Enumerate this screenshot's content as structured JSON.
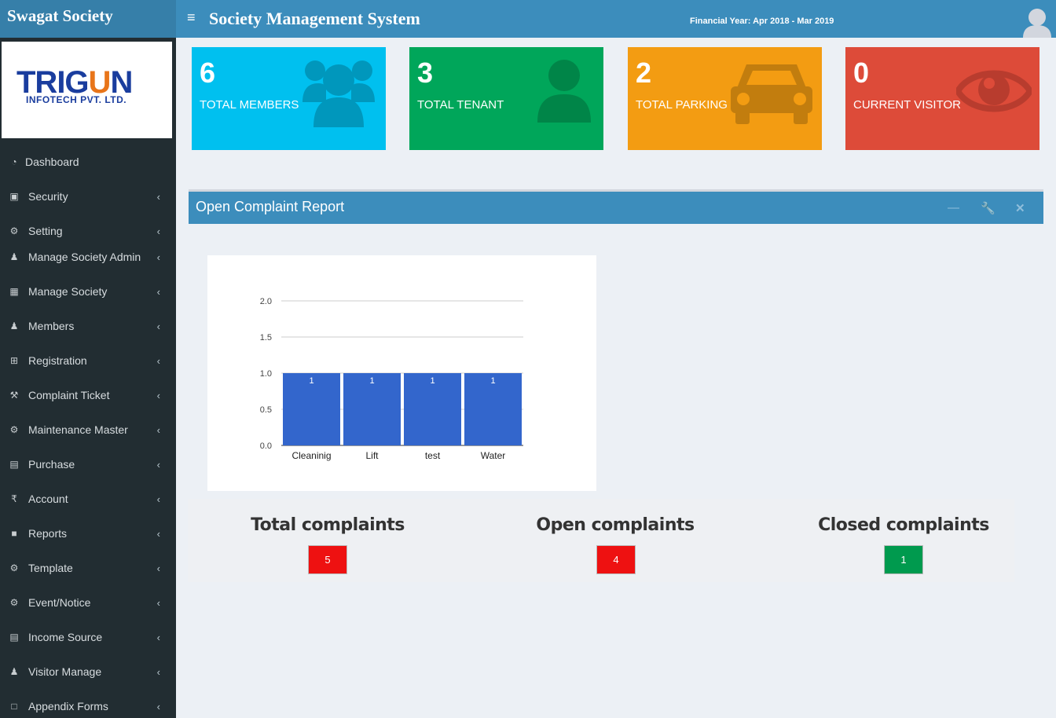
{
  "sidebar": {
    "brand": "Swagat Society",
    "logo": {
      "main": "TRIGUN",
      "sub": "INFOTECH PVT. LTD."
    },
    "items": [
      {
        "label": "Dashboard",
        "icon": "dashboard-icon",
        "has_chevron": false
      },
      {
        "label": "Security",
        "icon": "lock-icon",
        "has_chevron": true
      },
      {
        "label": "Setting",
        "icon": "gears-icon",
        "has_chevron": true
      },
      {
        "label": "Manage Society Admin",
        "icon": "users-icon",
        "has_chevron": true
      },
      {
        "label": "Manage Society",
        "icon": "building-icon",
        "has_chevron": true
      },
      {
        "label": "Members",
        "icon": "users-icon",
        "has_chevron": true
      },
      {
        "label": "Registration",
        "icon": "plus-square-icon",
        "has_chevron": true
      },
      {
        "label": "Complaint Ticket",
        "icon": "wrench-icon",
        "has_chevron": true
      },
      {
        "label": "Maintenance Master",
        "icon": "gears-icon",
        "has_chevron": true
      },
      {
        "label": "Purchase",
        "icon": "money-icon",
        "has_chevron": true
      },
      {
        "label": "Account",
        "icon": "rupee-icon",
        "has_chevron": true
      },
      {
        "label": "Reports",
        "icon": "file-icon",
        "has_chevron": true
      },
      {
        "label": "Template",
        "icon": "gears-icon",
        "has_chevron": true
      },
      {
        "label": "Event/Notice",
        "icon": "gears-icon",
        "has_chevron": true
      },
      {
        "label": "Income Source",
        "icon": "money-icon",
        "has_chevron": true
      },
      {
        "label": "Visitor Manage",
        "icon": "users-icon",
        "has_chevron": true
      },
      {
        "label": "Appendix Forms",
        "icon": "pdf-file-icon",
        "has_chevron": true
      }
    ]
  },
  "header": {
    "title": "Society Management System",
    "financial_year": "Financial Year: Apr 2018 - Mar 2019"
  },
  "stats": [
    {
      "value": "6",
      "label": "TOTAL MEMBERS",
      "color": "#00c0ef",
      "icon": "users-icon"
    },
    {
      "value": "3",
      "label": "TOTAL TENANT",
      "color": "#00a65a",
      "icon": "user-icon"
    },
    {
      "value": "2",
      "label": "TOTAL PARKING",
      "color": "#f39c12",
      "icon": "car-icon"
    },
    {
      "value": "0",
      "label": "CURRENT VISITOR",
      "color": "#dd4b39",
      "icon": "eye-icon"
    }
  ],
  "panel": {
    "title": "Open Complaint Report",
    "tools": [
      "minus-icon",
      "wrench-icon",
      "close-icon"
    ]
  },
  "chart_data": {
    "type": "bar",
    "categories": [
      "Cleaninig",
      "Lift",
      "test",
      "Water"
    ],
    "values": [
      1,
      1,
      1,
      1
    ],
    "data_labels": [
      "1",
      "1",
      "1",
      "1"
    ],
    "yticks": [
      "0.0",
      "0.5",
      "1.0",
      "1.5",
      "2.0"
    ],
    "ylim": [
      0,
      2
    ],
    "grid": true,
    "bar_color": "#3366cc"
  },
  "complaints": {
    "total": {
      "label": "Total complaints",
      "value": "5",
      "color": "#ee1111"
    },
    "open": {
      "label": "Open complaints",
      "value": "4",
      "color": "#ee1111"
    },
    "closed": {
      "label": "Closed complaints",
      "value": "1",
      "color": "#009a4e"
    }
  }
}
